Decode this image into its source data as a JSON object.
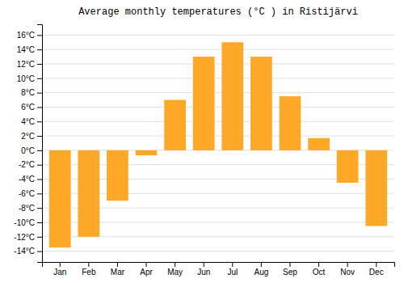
{
  "chart_data": {
    "type": "bar",
    "title": "Average monthly temperatures (°C ) in Ristijärvi",
    "categories": [
      "Jan",
      "Feb",
      "Mar",
      "Apr",
      "May",
      "Jun",
      "Jul",
      "Aug",
      "Sep",
      "Oct",
      "Nov",
      "Dec"
    ],
    "values": [
      -13.5,
      -12.0,
      -7.0,
      -0.7,
      7.0,
      13.0,
      15.0,
      13.0,
      7.5,
      1.7,
      -4.5,
      -10.5
    ],
    "color": "#FFA726",
    "ylim": [
      -15.5,
      17.5
    ],
    "yticks": [
      {
        "value": -14,
        "label": "-14°C"
      },
      {
        "value": -12,
        "label": "-12°C"
      },
      {
        "value": -10,
        "label": "-10°C"
      },
      {
        "value": -8,
        "label": "-8°C"
      },
      {
        "value": -6,
        "label": "-6°C"
      },
      {
        "value": -4,
        "label": "-4°C"
      },
      {
        "value": -2,
        "label": "-2°C"
      },
      {
        "value": 0,
        "label": "0°C"
      },
      {
        "value": 2,
        "label": "2°C"
      },
      {
        "value": 4,
        "label": "4°C"
      },
      {
        "value": 6,
        "label": "6°C"
      },
      {
        "value": 8,
        "label": "8°C"
      },
      {
        "value": 10,
        "label": "10°C"
      },
      {
        "value": 12,
        "label": "12°C"
      },
      {
        "value": 14,
        "label": "14°C"
      },
      {
        "value": 16,
        "label": "16°C"
      }
    ],
    "grid": true
  }
}
